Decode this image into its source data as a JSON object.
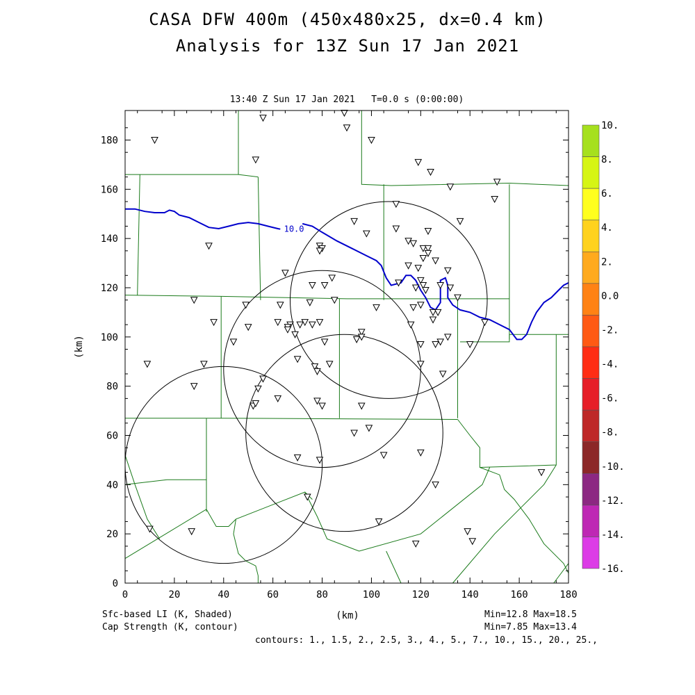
{
  "header": {
    "title_line1": "CASA DFW 400m (450x480x25, dx=0.4 km)",
    "title_line2": "Analysis for 13Z Sun 17 Jan 2021",
    "subtitle": "13:40 Z Sun 17 Jan 2021   T=0.0 s (0:00:00)"
  },
  "footer": {
    "field1_label": "Sfc-based LI (K, Shaded)",
    "field1_stats": "Min=12.8 Max=18.5",
    "field2_label": "Cap Strength (K, contour)",
    "field2_stats": "Min=7.85 Max=13.4",
    "contours": "contours: 1., 1.5, 2., 2.5, 3., 4., 5., 7., 10., 15., 20., 25.,"
  },
  "colors": {
    "boundaries": "#1a7a1a",
    "contour": "#0000cc",
    "radar_rings": "#000000"
  },
  "chart_data": {
    "type": "map",
    "xlabel": "(km)",
    "ylabel": "(km)",
    "xlim": [
      0,
      180
    ],
    "ylim": [
      0,
      192
    ],
    "xticks": [
      0,
      20,
      40,
      60,
      80,
      100,
      120,
      140,
      160,
      180
    ],
    "yticks": [
      0,
      20,
      40,
      60,
      80,
      100,
      120,
      140,
      160,
      180
    ],
    "colorbar": {
      "labels": [
        "10.",
        "8.",
        "6.",
        "4.",
        "2.",
        "0.0",
        "-2.",
        "-4.",
        "-6.",
        "-8.",
        "-10.",
        "-12.",
        "-14.",
        "-16."
      ],
      "colors": [
        "#a6e01e",
        "#d6f514",
        "#ffff1e",
        "#ffd21e",
        "#ffaa1e",
        "#ff8214",
        "#ff5a14",
        "#ff2d14",
        "#e61e28",
        "#be2828",
        "#8c2828",
        "#8c2882",
        "#be28b4",
        "#dc3ce6"
      ]
    },
    "contour_label": "10.0",
    "cap_contour_10": [
      [
        0,
        152
      ],
      [
        4,
        152
      ],
      [
        8,
        151
      ],
      [
        12,
        150.5
      ],
      [
        16,
        150.5
      ],
      [
        18,
        151.5
      ],
      [
        20,
        151
      ],
      [
        22,
        149.5
      ],
      [
        26,
        148.5
      ],
      [
        30,
        146.5
      ],
      [
        34,
        144.5
      ],
      [
        38,
        144
      ],
      [
        42,
        145
      ],
      [
        46,
        146
      ],
      [
        50,
        146.5
      ],
      [
        54,
        146
      ],
      [
        58,
        145
      ],
      [
        62,
        144
      ],
      [
        63,
        143.8
      ]
    ],
    "cap_contour_10b": [
      [
        72,
        146
      ],
      [
        76,
        145
      ],
      [
        80,
        142.5
      ],
      [
        86,
        139
      ],
      [
        92,
        136
      ],
      [
        98,
        133
      ],
      [
        102,
        131
      ],
      [
        104,
        129
      ],
      [
        106,
        124
      ],
      [
        108,
        121
      ],
      [
        112,
        122
      ],
      [
        114,
        125
      ],
      [
        116,
        125
      ],
      [
        118,
        123
      ],
      [
        120,
        119
      ],
      [
        122,
        116
      ],
      [
        124,
        112
      ],
      [
        126,
        111
      ],
      [
        128,
        114
      ],
      [
        128,
        123
      ],
      [
        130,
        124
      ],
      [
        131,
        121
      ],
      [
        131,
        116
      ],
      [
        133,
        113
      ],
      [
        136,
        111
      ],
      [
        140,
        110
      ],
      [
        144,
        108
      ],
      [
        148,
        107
      ],
      [
        152,
        105
      ],
      [
        156,
        103
      ],
      [
        159,
        99
      ],
      [
        161,
        99
      ],
      [
        163,
        101
      ],
      [
        165,
        106
      ],
      [
        167,
        110
      ],
      [
        170,
        114
      ],
      [
        173,
        116
      ],
      [
        176,
        119
      ],
      [
        178,
        121
      ],
      [
        180,
        122
      ]
    ],
    "radar_rings": [
      {
        "cx": 40,
        "cy": 48,
        "r": 40
      },
      {
        "cx": 80,
        "cy": 87,
        "r": 40
      },
      {
        "cx": 107,
        "cy": 115,
        "r": 40
      },
      {
        "cx": 89,
        "cy": 61,
        "r": 40
      }
    ],
    "boundaries": [
      [
        [
          46,
          192
        ],
        [
          46,
          166
        ]
      ],
      [
        [
          0,
          166
        ],
        [
          46,
          166
        ],
        [
          54,
          165
        ]
      ],
      [
        [
          96,
          192
        ],
        [
          96,
          162
        ],
        [
          108,
          161.5
        ],
        [
          156,
          162.5
        ],
        [
          180,
          161.5
        ]
      ],
      [
        [
          6,
          166
        ],
        [
          5,
          117
        ]
      ],
      [
        [
          54,
          165
        ],
        [
          55,
          115
        ]
      ],
      [
        [
          0,
          117
        ],
        [
          39,
          116.5
        ],
        [
          90,
          115.5
        ],
        [
          156,
          115.5
        ]
      ],
      [
        [
          105,
          162
        ],
        [
          105,
          115
        ]
      ],
      [
        [
          156,
          162
        ],
        [
          156,
          158
        ],
        [
          156,
          115
        ],
        [
          156,
          99
        ]
      ],
      [
        [
          39,
          116.5
        ],
        [
          39,
          67
        ]
      ],
      [
        [
          87,
          115.5
        ],
        [
          87,
          67
        ]
      ],
      [
        [
          135,
          115.5
        ],
        [
          135,
          67
        ]
      ],
      [
        [
          136,
          98
        ],
        [
          156,
          98
        ],
        [
          156,
          101
        ],
        [
          180,
          101
        ]
      ],
      [
        [
          0,
          67
        ],
        [
          39,
          67
        ],
        [
          135,
          66.5
        ]
      ],
      [
        [
          175,
          101
        ],
        [
          175,
          48
        ],
        [
          144,
          47
        ]
      ],
      [
        [
          33,
          67
        ],
        [
          33,
          29
        ]
      ],
      [
        [
          0,
          40
        ],
        [
          17,
          42
        ],
        [
          33,
          42
        ]
      ],
      [
        [
          0,
          10
        ],
        [
          33,
          30
        ],
        [
          37,
          23
        ],
        [
          42,
          23
        ],
        [
          45,
          26
        ],
        [
          73,
          37
        ],
        [
          78,
          27
        ],
        [
          82,
          18
        ],
        [
          95,
          13
        ],
        [
          120,
          20
        ],
        [
          145,
          40
        ],
        [
          148,
          47
        ]
      ],
      [
        [
          0,
          52
        ],
        [
          4,
          40
        ],
        [
          9,
          26
        ],
        [
          14,
          18
        ]
      ],
      [
        [
          73,
          37
        ],
        [
          74,
          36
        ],
        [
          76,
          34
        ]
      ],
      [
        [
          45,
          26
        ],
        [
          44,
          20
        ],
        [
          46,
          12
        ],
        [
          49,
          9
        ],
        [
          53,
          7
        ],
        [
          54,
          3
        ],
        [
          54,
          0
        ]
      ],
      [
        [
          135,
          66.5
        ],
        [
          140,
          60
        ],
        [
          144,
          55
        ],
        [
          144,
          47
        ],
        [
          152,
          44
        ],
        [
          154,
          38
        ],
        [
          158,
          34
        ],
        [
          164,
          26
        ],
        [
          170,
          16
        ],
        [
          178,
          8
        ],
        [
          180,
          4
        ]
      ],
      [
        [
          106,
          13
        ],
        [
          112,
          0
        ]
      ],
      [
        [
          133,
          0
        ],
        [
          150,
          20
        ],
        [
          160,
          30
        ],
        [
          170,
          40
        ],
        [
          175,
          48
        ]
      ],
      [
        [
          174,
          0
        ],
        [
          180,
          8
        ]
      ]
    ],
    "stations": [
      [
        12,
        180
      ],
      [
        56,
        189
      ],
      [
        89,
        191
      ],
      [
        90,
        185
      ],
      [
        100,
        180
      ],
      [
        53,
        172
      ],
      [
        119,
        171
      ],
      [
        124,
        167
      ],
      [
        132,
        161
      ],
      [
        151,
        163
      ],
      [
        150,
        156
      ],
      [
        34,
        137
      ],
      [
        110,
        154
      ],
      [
        93,
        147
      ],
      [
        98,
        142
      ],
      [
        110,
        144
      ],
      [
        115,
        139
      ],
      [
        117,
        138
      ],
      [
        123,
        143
      ],
      [
        136,
        147
      ],
      [
        79,
        137
      ],
      [
        80,
        136
      ],
      [
        79,
        135
      ],
      [
        121,
        136
      ],
      [
        123,
        136
      ],
      [
        123,
        134
      ],
      [
        121,
        132
      ],
      [
        126,
        131
      ],
      [
        115,
        129
      ],
      [
        119,
        128
      ],
      [
        131,
        127
      ],
      [
        65,
        126
      ],
      [
        84,
        124
      ],
      [
        76,
        121
      ],
      [
        81,
        121
      ],
      [
        111,
        122
      ],
      [
        120,
        123
      ],
      [
        121,
        121
      ],
      [
        118,
        120
      ],
      [
        128,
        121
      ],
      [
        132,
        120
      ],
      [
        122,
        119
      ],
      [
        28,
        115
      ],
      [
        63,
        113
      ],
      [
        49,
        113
      ],
      [
        75,
        114
      ],
      [
        85,
        115
      ],
      [
        102,
        112
      ],
      [
        117,
        112
      ],
      [
        120,
        113
      ],
      [
        125,
        110
      ],
      [
        127,
        110
      ],
      [
        125,
        107
      ],
      [
        135,
        116
      ],
      [
        36,
        106
      ],
      [
        62,
        106
      ],
      [
        67,
        105
      ],
      [
        66,
        104
      ],
      [
        71,
        105
      ],
      [
        73,
        106
      ],
      [
        76,
        105
      ],
      [
        79,
        106
      ],
      [
        50,
        104
      ],
      [
        66,
        103
      ],
      [
        69,
        101
      ],
      [
        116,
        105
      ],
      [
        96,
        102
      ],
      [
        94,
        99
      ],
      [
        96,
        100
      ],
      [
        44,
        98
      ],
      [
        81,
        98
      ],
      [
        128,
        98
      ],
      [
        131,
        100
      ],
      [
        126,
        97
      ],
      [
        140,
        97
      ],
      [
        146,
        106
      ],
      [
        120,
        97
      ],
      [
        9,
        89
      ],
      [
        32,
        89
      ],
      [
        70,
        91
      ],
      [
        77,
        88
      ],
      [
        78,
        86
      ],
      [
        83,
        89
      ],
      [
        120,
        89
      ],
      [
        129,
        85
      ],
      [
        28,
        80
      ],
      [
        56,
        83
      ],
      [
        54,
        79
      ],
      [
        62,
        75
      ],
      [
        52,
        72
      ],
      [
        53,
        73
      ],
      [
        78,
        74
      ],
      [
        80,
        72
      ],
      [
        96,
        72
      ],
      [
        99,
        63
      ],
      [
        93,
        61
      ],
      [
        70,
        51
      ],
      [
        79,
        50
      ],
      [
        105,
        52
      ],
      [
        120,
        53
      ],
      [
        126,
        40
      ],
      [
        74,
        35
      ],
      [
        103,
        25
      ],
      [
        10,
        22
      ],
      [
        27,
        21
      ],
      [
        139,
        21
      ],
      [
        141,
        17
      ],
      [
        118,
        16
      ],
      [
        169,
        45
      ]
    ]
  }
}
